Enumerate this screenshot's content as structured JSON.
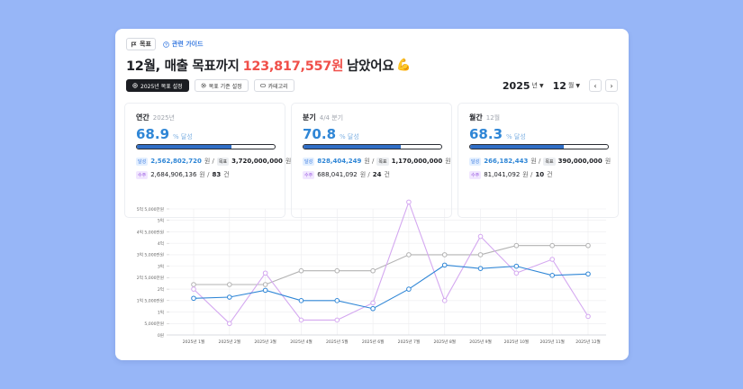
{
  "header": {
    "goal_chip": "목표",
    "guide_link": "관련 가이드",
    "headline_prefix": "12월, 매출 목표까지",
    "headline_amount": "123,817,557원",
    "headline_suffix": "남았어요",
    "headline_emoji": "💪"
  },
  "toolbar": {
    "set_goal_label": "2025년 목표 설정",
    "criteria_label": "목표 기준 설정",
    "category_label": "카테고리"
  },
  "date": {
    "year": "2025",
    "year_unit": "년",
    "month": "12",
    "month_unit": "월"
  },
  "stats": [
    {
      "title": "연간",
      "sub": "2025년",
      "percent": "68.9",
      "percent_label": "% 달성",
      "progress": 0.689,
      "achieved_tag": "달성",
      "achieved": "2,562,802,720",
      "achieved_unit": "원 /",
      "goal_tag": "목표",
      "goal": "3,720,000,000",
      "goal_unit": "원",
      "orders_tag": "수주",
      "orders_amount": "2,684,906,136",
      "orders_unit": "원 /",
      "orders_count": "83",
      "orders_count_unit": "건"
    },
    {
      "title": "분기",
      "sub": "4/4 분기",
      "percent": "70.8",
      "percent_label": "% 달성",
      "progress": 0.708,
      "achieved_tag": "달성",
      "achieved": "828,404,249",
      "achieved_unit": "원 /",
      "goal_tag": "목표",
      "goal": "1,170,000,000",
      "goal_unit": "원",
      "orders_tag": "수주",
      "orders_amount": "688,041,092",
      "orders_unit": "원 /",
      "orders_count": "24",
      "orders_count_unit": "건"
    },
    {
      "title": "월간",
      "sub": "12월",
      "percent": "68.3",
      "percent_label": "% 달성",
      "progress": 0.683,
      "achieved_tag": "달성",
      "achieved": "266,182,443",
      "achieved_unit": "원 /",
      "goal_tag": "목표",
      "goal": "390,000,000",
      "goal_unit": "원",
      "orders_tag": "수주",
      "orders_amount": "81,041,092",
      "orders_unit": "원 /",
      "orders_count": "10",
      "orders_count_unit": "건"
    }
  ],
  "colors": {
    "accent_blue": "#2f86d6",
    "goal_gray": "#b3b3b3",
    "orders_purple": "#d4a8f0",
    "headline_red": "#f0504a"
  },
  "chart_data": {
    "type": "line",
    "categories": [
      "2025년 1월",
      "2025년 2월",
      "2025년 3월",
      "2025년 4월",
      "2025년 5월",
      "2025년 6월",
      "2025년 7월",
      "2025년 8월",
      "2025년 9월",
      "2025년 10월",
      "2025년 11월",
      "2025년 12월"
    ],
    "y_ticks": [
      "0원",
      "5,000만원",
      "1억",
      "1억 5,000만원",
      "2억",
      "2억 5,000만원",
      "3억",
      "3억 5,000만원",
      "4억",
      "4억 5,000만원",
      "5억",
      "5억 5,000만원"
    ],
    "ylim": [
      0,
      550000000
    ],
    "series": [
      {
        "name": "목표",
        "color": "#b3b3b3",
        "values": [
          220000000,
          220000000,
          220000000,
          280000000,
          280000000,
          280000000,
          350000000,
          350000000,
          350000000,
          390000000,
          390000000,
          390000000
        ]
      },
      {
        "name": "수주",
        "color": "#d4a8f0",
        "values": [
          200000000,
          50000000,
          270000000,
          65000000,
          65000000,
          140000000,
          580000000,
          150000000,
          430000000,
          270000000,
          330000000,
          81000000
        ]
      },
      {
        "name": "달성",
        "color": "#2f86d6",
        "values": [
          160000000,
          165000000,
          195000000,
          150000000,
          150000000,
          115000000,
          200000000,
          305000000,
          290000000,
          300000000,
          260000000,
          266000000
        ]
      }
    ]
  }
}
